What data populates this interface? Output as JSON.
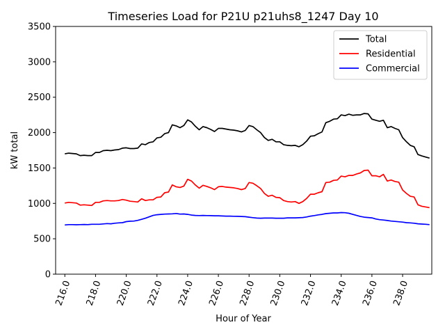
{
  "chart_data": {
    "type": "line",
    "title": "Timeseries Load for P21U p21uhs8_1247  Day 10",
    "xlabel": "Hour of Year",
    "ylabel": "kW total",
    "xlim": [
      215.4,
      239.9
    ],
    "ylim": [
      0,
      3500
    ],
    "xticks": [
      216,
      218,
      220,
      222,
      224,
      226,
      228,
      230,
      232,
      234,
      236,
      238
    ],
    "xtick_labels": [
      "216.0",
      "218.0",
      "220.0",
      "222.0",
      "224.0",
      "226.0",
      "228.0",
      "230.0",
      "232.0",
      "234.0",
      "236.0",
      "238.0"
    ],
    "yticks": [
      0,
      500,
      1000,
      1500,
      2000,
      2500,
      3000,
      3500
    ],
    "ytick_labels": [
      "0",
      "500",
      "1000",
      "1500",
      "2000",
      "2500",
      "3000",
      "3500"
    ],
    "grid": false,
    "legend_position": "top-right",
    "x": [
      216.0,
      216.25,
      216.5,
      216.75,
      217.0,
      217.25,
      217.5,
      217.75,
      218.0,
      218.25,
      218.5,
      218.75,
      219.0,
      219.25,
      219.5,
      219.75,
      220.0,
      220.25,
      220.5,
      220.75,
      221.0,
      221.25,
      221.5,
      221.75,
      222.0,
      222.25,
      222.5,
      222.75,
      223.0,
      223.25,
      223.5,
      223.75,
      224.0,
      224.25,
      224.5,
      224.75,
      225.0,
      225.25,
      225.5,
      225.75,
      226.0,
      226.25,
      226.5,
      226.75,
      227.0,
      227.25,
      227.5,
      227.75,
      228.0,
      228.25,
      228.5,
      228.75,
      229.0,
      229.25,
      229.5,
      229.75,
      230.0,
      230.25,
      230.5,
      230.75,
      231.0,
      231.25,
      231.5,
      231.75,
      232.0,
      232.25,
      232.5,
      232.75,
      233.0,
      233.25,
      233.5,
      233.75,
      234.0,
      234.25,
      234.5,
      234.75,
      235.0,
      235.25,
      235.5,
      235.75,
      236.0,
      236.25,
      236.5,
      236.75,
      237.0,
      237.25,
      237.5,
      237.75,
      238.0,
      238.25,
      238.5,
      238.75,
      239.0,
      239.25,
      239.5,
      239.75
    ],
    "series": [
      {
        "name": "Total",
        "color": "#000000",
        "values": [
          1700,
          1710,
          1705,
          1700,
          1675,
          1680,
          1675,
          1675,
          1720,
          1720,
          1745,
          1750,
          1745,
          1755,
          1760,
          1780,
          1785,
          1775,
          1775,
          1780,
          1840,
          1830,
          1860,
          1870,
          1925,
          1935,
          1985,
          2000,
          2110,
          2095,
          2070,
          2100,
          2180,
          2150,
          2090,
          2040,
          2085,
          2070,
          2045,
          2015,
          2060,
          2060,
          2050,
          2040,
          2035,
          2025,
          2010,
          2030,
          2100,
          2085,
          2040,
          2000,
          1930,
          1890,
          1905,
          1870,
          1870,
          1830,
          1820,
          1815,
          1820,
          1800,
          1830,
          1880,
          1950,
          1955,
          1985,
          2010,
          2140,
          2160,
          2190,
          2195,
          2250,
          2240,
          2260,
          2245,
          2250,
          2250,
          2270,
          2265,
          2190,
          2175,
          2160,
          2175,
          2070,
          2085,
          2060,
          2040,
          1930,
          1870,
          1820,
          1800,
          1690,
          1670,
          1655,
          1640
        ]
      },
      {
        "name": "Residential",
        "color": "#ff0000",
        "values": [
          1005,
          1015,
          1010,
          1005,
          975,
          980,
          975,
          970,
          1015,
          1015,
          1035,
          1040,
          1035,
          1035,
          1040,
          1055,
          1045,
          1030,
          1025,
          1020,
          1065,
          1040,
          1050,
          1050,
          1085,
          1090,
          1150,
          1160,
          1260,
          1235,
          1225,
          1245,
          1340,
          1315,
          1260,
          1215,
          1255,
          1240,
          1220,
          1195,
          1235,
          1240,
          1230,
          1225,
          1220,
          1210,
          1195,
          1210,
          1295,
          1285,
          1250,
          1210,
          1140,
          1100,
          1115,
          1085,
          1080,
          1040,
          1025,
          1020,
          1025,
          1000,
          1025,
          1070,
          1130,
          1130,
          1150,
          1165,
          1295,
          1300,
          1325,
          1330,
          1385,
          1375,
          1395,
          1395,
          1415,
          1430,
          1465,
          1470,
          1390,
          1390,
          1375,
          1410,
          1315,
          1330,
          1310,
          1300,
          1190,
          1140,
          1100,
          1090,
          980,
          960,
          950,
          940
        ]
      },
      {
        "name": "Commercial",
        "color": "#0000ff",
        "values": [
          695,
          700,
          700,
          698,
          700,
          702,
          700,
          705,
          705,
          705,
          710,
          715,
          712,
          720,
          725,
          728,
          742,
          748,
          750,
          760,
          775,
          790,
          810,
          830,
          840,
          845,
          848,
          850,
          852,
          857,
          848,
          850,
          845,
          835,
          830,
          828,
          830,
          828,
          827,
          825,
          825,
          822,
          820,
          820,
          818,
          817,
          815,
          812,
          805,
          798,
          792,
          790,
          792,
          793,
          792,
          790,
          790,
          790,
          795,
          795,
          795,
          797,
          800,
          808,
          820,
          828,
          838,
          845,
          855,
          860,
          865,
          865,
          870,
          868,
          860,
          845,
          830,
          815,
          805,
          800,
          795,
          780,
          770,
          765,
          758,
          750,
          745,
          740,
          735,
          728,
          725,
          720,
          712,
          708,
          705,
          700
        ]
      }
    ]
  }
}
